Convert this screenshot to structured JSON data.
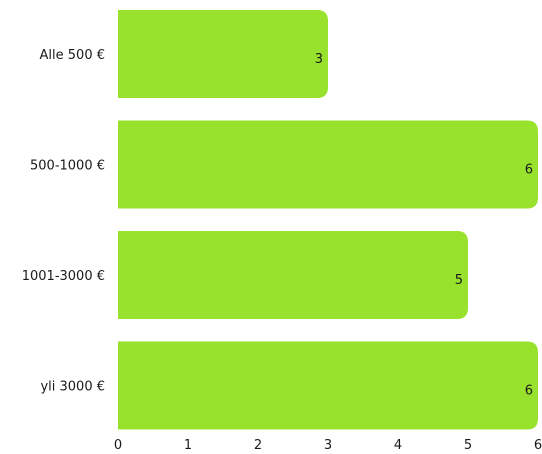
{
  "chart_data": {
    "type": "bar",
    "orientation": "horizontal",
    "categories": [
      "Alle 500 €",
      "500-1000 €",
      "1001-3000 €",
      "yli 3000 €"
    ],
    "values": [
      3,
      6,
      5,
      6
    ],
    "data_labels": [
      "3",
      "6",
      "5",
      "6"
    ],
    "xlim": [
      0,
      6
    ],
    "x_ticks": [
      0,
      1,
      2,
      3,
      4,
      5,
      6
    ],
    "x_tick_labels": [
      "0",
      "1",
      "2",
      "3",
      "4",
      "5",
      "6"
    ],
    "title": "",
    "xlabel": "",
    "ylabel": "",
    "grid": false,
    "legend": "none",
    "bar_color": "#98e22e",
    "text_color": "#1a1a1a"
  }
}
